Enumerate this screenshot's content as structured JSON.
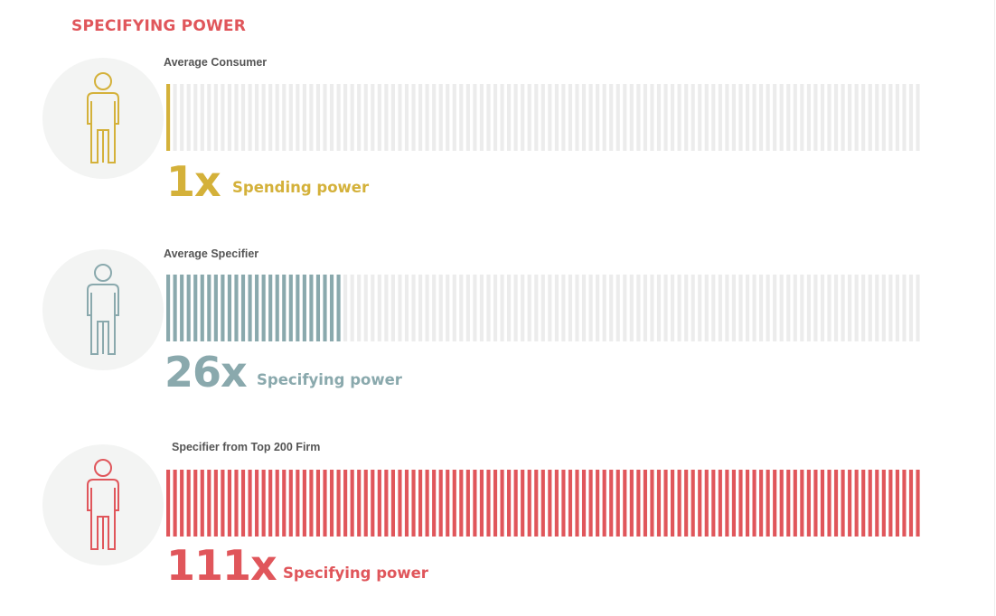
{
  "title": "SPECIFYING POWER",
  "colors": {
    "title": "#e0565b",
    "track": "#ececec",
    "avatar_bg": "#f3f4f3"
  },
  "chart_data": {
    "type": "bar",
    "scale_max": 111,
    "bar_segments_total": 111,
    "items": [
      {
        "label": "Average Consumer",
        "value": 1,
        "multiplier_text": "1x",
        "caption": "Spending power",
        "color": "#d4b13a",
        "icon": "person-icon"
      },
      {
        "label": "Average Specifier",
        "value": 26,
        "multiplier_text": "26x",
        "caption": "Specifying power",
        "color": "#8aa9ad",
        "icon": "person-icon"
      },
      {
        "label": "Specifier from Top 200 Firm",
        "value": 111,
        "multiplier_text": "111x",
        "caption": "Specifying power",
        "color": "#e0565b",
        "icon": "person-icon"
      }
    ]
  }
}
